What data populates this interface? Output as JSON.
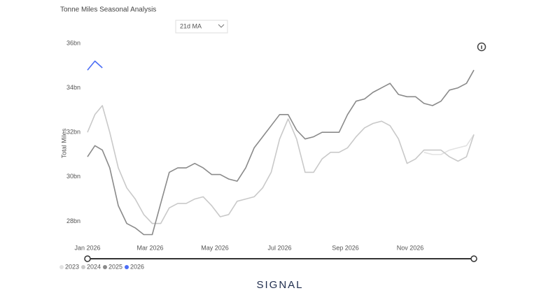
{
  "controls": {
    "dropdown": "21d MA"
  },
  "footer": {
    "logo": "SIGNAL"
  },
  "chart_data": {
    "type": "line",
    "title": "Tonne Miles Seasonal Analysis",
    "y_label": "Total Miles",
    "x": [
      1,
      8,
      15,
      22,
      30,
      38,
      46,
      54,
      62,
      70,
      78,
      86,
      94,
      102,
      110,
      118,
      126,
      134,
      142,
      150,
      158,
      166,
      174,
      182,
      190,
      198,
      206,
      214,
      222,
      230,
      238,
      246,
      254,
      262,
      270,
      278,
      286,
      294,
      302,
      310,
      318,
      326,
      334,
      342,
      350,
      358,
      365
    ],
    "xlim": [
      1,
      365
    ],
    "xticks": [
      {
        "value": 1,
        "label": "Jan 2026"
      },
      {
        "value": 60,
        "label": "Mar 2026"
      },
      {
        "value": 121,
        "label": "May 2026"
      },
      {
        "value": 182,
        "label": "Jul 2026"
      },
      {
        "value": 244,
        "label": "Sep 2026"
      },
      {
        "value": 305,
        "label": "Nov 2026"
      }
    ],
    "ylim": [
      27.1,
      36
    ],
    "yticks": [
      {
        "value": 28,
        "label": "28bn"
      },
      {
        "value": 30,
        "label": "30bn"
      },
      {
        "value": 32,
        "label": "32bn"
      },
      {
        "value": 34,
        "label": "34bn"
      },
      {
        "value": 36,
        "label": "36bn"
      }
    ],
    "grid": false,
    "legend": "bottom-left",
    "series": [
      {
        "name": "2023",
        "color": "#e2e2e2",
        "values": [
          null,
          null,
          null,
          null,
          null,
          null,
          null,
          null,
          null,
          null,
          null,
          null,
          null,
          null,
          null,
          null,
          null,
          null,
          null,
          null,
          null,
          null,
          null,
          null,
          null,
          null,
          null,
          null,
          null,
          null,
          null,
          null,
          null,
          null,
          null,
          null,
          null,
          null,
          null,
          null,
          31.1,
          31.0,
          31.0,
          31.2,
          31.3,
          31.4,
          31.9
        ]
      },
      {
        "name": "2024",
        "color": "#c9c9c9",
        "values": [
          32.0,
          32.8,
          33.2,
          32.0,
          30.4,
          29.5,
          29.0,
          28.3,
          27.9,
          27.9,
          28.6,
          28.8,
          28.8,
          29.0,
          29.1,
          28.7,
          28.2,
          28.3,
          28.9,
          29.0,
          29.1,
          29.5,
          30.2,
          31.7,
          32.6,
          31.7,
          30.2,
          30.2,
          30.8,
          31.1,
          31.1,
          31.3,
          31.8,
          32.2,
          32.4,
          32.5,
          32.3,
          31.7,
          30.6,
          30.8,
          31.2,
          31.2,
          31.2,
          30.9,
          30.7,
          30.9,
          31.9
        ]
      },
      {
        "name": "2025",
        "color": "#8a8a8a",
        "values": [
          30.9,
          31.4,
          31.2,
          30.4,
          28.7,
          27.9,
          27.7,
          27.4,
          27.4,
          28.8,
          30.2,
          30.4,
          30.4,
          30.6,
          30.4,
          30.1,
          30.1,
          29.9,
          29.8,
          30.4,
          31.3,
          31.8,
          32.3,
          32.8,
          32.8,
          32.1,
          31.7,
          31.8,
          32.0,
          32.0,
          32.0,
          32.8,
          33.4,
          33.5,
          33.8,
          34.0,
          34.2,
          33.7,
          33.6,
          33.6,
          33.3,
          33.2,
          33.4,
          33.9,
          34.0,
          34.2,
          34.8
        ]
      },
      {
        "name": "2026",
        "color": "#4c6ef5",
        "values": [
          34.8,
          35.2,
          34.9,
          null,
          null,
          null,
          null,
          null,
          null,
          null,
          null,
          null,
          null,
          null,
          null,
          null,
          null,
          null,
          null,
          null,
          null,
          null,
          null,
          null,
          null,
          null,
          null,
          null,
          null,
          null,
          null,
          null,
          null,
          null,
          null,
          null,
          null,
          null,
          null,
          null,
          null,
          null,
          null,
          null,
          null,
          null,
          null
        ]
      }
    ]
  }
}
